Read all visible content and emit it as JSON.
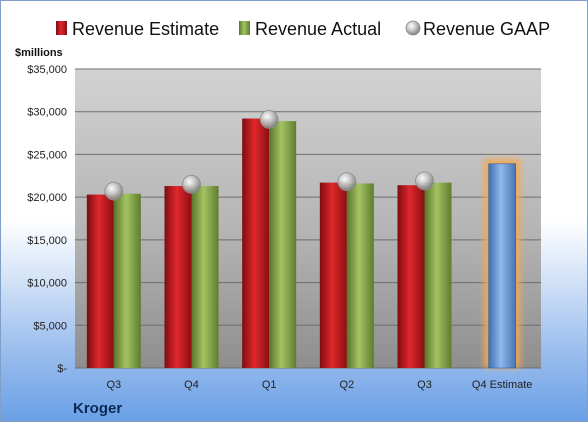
{
  "chart_data": {
    "type": "bar",
    "company": "Kroger",
    "ylabel": "$millions",
    "ylim": [
      0,
      35000
    ],
    "yticks": [
      0,
      5000,
      10000,
      15000,
      20000,
      25000,
      30000,
      35000
    ],
    "ytick_labels": [
      "$-",
      "$5,000",
      "$10,000",
      "$15,000",
      "$20,000",
      "$25,000",
      "$30,000",
      "$35,000"
    ],
    "categories": [
      "Q3",
      "Q4",
      "Q1",
      "Q2",
      "Q3",
      "Q4 Estimate"
    ],
    "series": [
      {
        "name": "Revenue Estimate",
        "type": "bar",
        "color": "#c0161b",
        "values": [
          20300,
          21300,
          29200,
          21700,
          21400,
          null
        ]
      },
      {
        "name": "Revenue Actual",
        "type": "bar",
        "color": "#8aac4a",
        "values": [
          20400,
          21300,
          28900,
          21600,
          21700,
          null
        ]
      },
      {
        "name": "Revenue GAAP",
        "type": "marker",
        "color": "#b8b8b8",
        "values": [
          20700,
          21500,
          29100,
          21800,
          21900,
          null
        ]
      },
      {
        "name": "Q4 Estimate",
        "type": "bar",
        "color": "#6f9fd8",
        "highlight": "#f4a94f",
        "values": [
          null,
          null,
          null,
          null,
          null,
          23900
        ]
      }
    ],
    "legend_position": "top",
    "grid": true,
    "plot_background": "#a9a9a9"
  }
}
